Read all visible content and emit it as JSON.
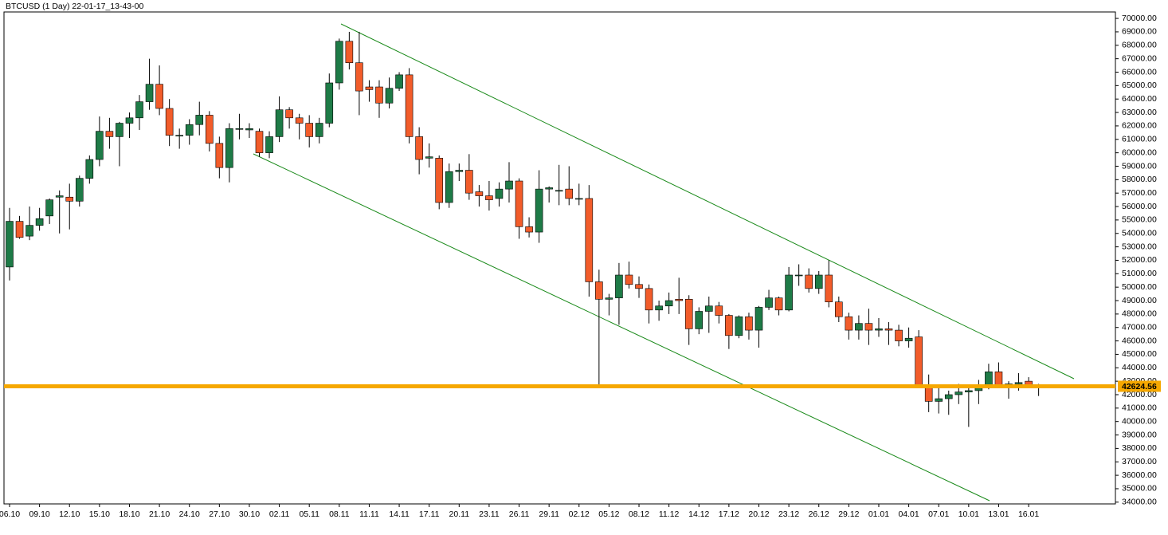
{
  "chart_data": {
    "type": "candlestick",
    "title": "BTCUSD (1 Day) 22-01-17_13-43-00",
    "categories": [
      "06.10",
      null,
      null,
      "09.10",
      null,
      null,
      "12.10",
      null,
      null,
      "15.10",
      null,
      null,
      "18.10",
      null,
      null,
      "21.10",
      null,
      null,
      "24.10",
      null,
      null,
      "27.10",
      null,
      null,
      "30.10",
      null,
      null,
      "02.11",
      null,
      null,
      "05.11",
      null,
      null,
      "08.11",
      null,
      null,
      "11.11",
      null,
      null,
      "14.11",
      null,
      null,
      "17.11",
      null,
      null,
      "20.11",
      null,
      null,
      "23.11",
      null,
      null,
      "26.11",
      null,
      null,
      "29.11",
      null,
      null,
      "02.12",
      null,
      null,
      "05.12",
      null,
      null,
      "08.12",
      null,
      null,
      "11.12",
      null,
      null,
      "14.12",
      null,
      null,
      "17.12",
      null,
      null,
      "20.12",
      null,
      null,
      "23.12",
      null,
      null,
      "26.12",
      null,
      null,
      "29.12",
      null,
      null,
      "01.01",
      null,
      null,
      "04.01",
      null,
      null,
      "07.01",
      null,
      null,
      "10.01",
      null,
      null,
      "13.01",
      null,
      null,
      "16.01",
      null
    ],
    "open": [
      51500,
      54900,
      53800,
      54600,
      55300,
      56700,
      56700,
      56400,
      58100,
      59500,
      61600,
      61200,
      62200,
      62600,
      63800,
      65100,
      63300,
      61300,
      61300,
      62100,
      62800,
      60700,
      58900,
      61800,
      61700,
      61600,
      60000,
      61200,
      63200,
      62600,
      62200,
      61200,
      62200,
      65200,
      68300,
      66700,
      64900,
      64900,
      63700,
      64800,
      65800,
      61200,
      59600,
      59600,
      56300,
      58600,
      58700,
      57100,
      56800,
      56600,
      57300,
      57900,
      54500,
      54100,
      57300,
      57200,
      57300,
      56600,
      56600,
      50400,
      49100,
      49200,
      50900,
      50200,
      49900,
      48300,
      48600,
      49100,
      49100,
      46900,
      48200,
      48600,
      47900,
      46400,
      47800,
      46800,
      48500,
      49200,
      48300,
      50900,
      50900,
      49900,
      50900,
      48900,
      47800,
      46800,
      47300,
      46800,
      46900,
      46800,
      46000,
      46300,
      42700,
      41500,
      41700,
      42000,
      42200,
      42300,
      42700,
      43700,
      42700,
      42800,
      43000,
      42600
    ],
    "high": [
      55900,
      55300,
      56000,
      55900,
      56600,
      57200,
      57700,
      58300,
      59800,
      62700,
      62600,
      62300,
      63000,
      64300,
      67000,
      66500,
      64000,
      61800,
      62500,
      63800,
      63100,
      61200,
      62200,
      62900,
      62200,
      61800,
      61600,
      64200,
      63400,
      62900,
      62800,
      62600,
      65900,
      68500,
      69000,
      69000,
      65400,
      65400,
      65600,
      66000,
      66300,
      61900,
      60700,
      59800,
      59200,
      59200,
      59900,
      57600,
      57900,
      57800,
      59300,
      58100,
      55200,
      58700,
      57500,
      59100,
      59000,
      57700,
      57600,
      51300,
      49500,
      51800,
      51900,
      50800,
      50200,
      49000,
      49600,
      50700,
      49400,
      48500,
      49300,
      48900,
      48000,
      47900,
      48100,
      48600,
      49800,
      49300,
      51500,
      51700,
      51400,
      51200,
      52000,
      49300,
      48100,
      47900,
      48400,
      47700,
      47400,
      47200,
      47000,
      46800,
      43500,
      42600,
      42300,
      42800,
      42700,
      43100,
      44300,
      44400,
      43000,
      43600,
      43300,
      42800
    ],
    "low": [
      50500,
      53600,
      53500,
      54200,
      54700,
      54000,
      54300,
      56000,
      57700,
      59000,
      60300,
      59000,
      61100,
      61700,
      63200,
      62800,
      60500,
      60300,
      60600,
      61300,
      60100,
      58100,
      57800,
      61000,
      61100,
      59700,
      59600,
      60800,
      61800,
      61000,
      60400,
      60700,
      61900,
      64700,
      66200,
      62800,
      63800,
      62600,
      63300,
      64600,
      60700,
      58400,
      58900,
      55800,
      55900,
      57900,
      56500,
      56000,
      55700,
      56000,
      56300,
      53600,
      53700,
      53300,
      56300,
      56100,
      56100,
      56100,
      49300,
      42600,
      47900,
      47200,
      49900,
      49200,
      47300,
      47500,
      48000,
      48000,
      45700,
      46500,
      46600,
      47300,
      45400,
      46200,
      46100,
      45500,
      48300,
      47900,
      48200,
      50100,
      49600,
      49500,
      48500,
      47400,
      46100,
      46100,
      45700,
      46300,
      45700,
      45600,
      45500,
      42500,
      40700,
      40600,
      40500,
      41300,
      39600,
      41300,
      42400,
      42600,
      41700,
      42300,
      42500,
      41900
    ],
    "close": [
      54900,
      53700,
      54600,
      55100,
      56500,
      56800,
      56400,
      58100,
      59500,
      61600,
      61200,
      62200,
      62600,
      63800,
      65100,
      63300,
      61300,
      61300,
      62100,
      62800,
      60700,
      58900,
      61800,
      61800,
      61800,
      60000,
      61200,
      63200,
      62600,
      62200,
      61200,
      62200,
      65200,
      68300,
      66700,
      64600,
      64700,
      63700,
      64800,
      65800,
      61200,
      59500,
      59700,
      56300,
      58600,
      58700,
      57000,
      56800,
      56500,
      57300,
      57900,
      54500,
      54100,
      57300,
      57400,
      57200,
      56600,
      56600,
      50400,
      49100,
      49200,
      50900,
      50200,
      49900,
      48300,
      48600,
      49000,
      49000,
      46900,
      48200,
      48600,
      47900,
      46400,
      47800,
      46800,
      48500,
      49200,
      48300,
      50900,
      50900,
      49900,
      50900,
      48900,
      47800,
      46800,
      47300,
      46800,
      46900,
      46800,
      46000,
      46200,
      42700,
      41500,
      41700,
      42000,
      42200,
      42300,
      42700,
      43700,
      42700,
      42800,
      42900,
      42500,
      42624.56
    ],
    "up_color": "#1e7b47",
    "down_color": "#f25c2a",
    "current_price": 42624.56,
    "current_price_color": "#f6a800",
    "ylim": [
      33870,
      70480
    ],
    "yticks": [
      {
        "value": 34000,
        "label": "34000.00"
      },
      {
        "value": 35000,
        "label": "35000.00"
      },
      {
        "value": 36000,
        "label": "36000.00"
      },
      {
        "value": 37000,
        "label": "37000.00"
      },
      {
        "value": 38000,
        "label": "38000.00"
      },
      {
        "value": 39000,
        "label": "39000.00"
      },
      {
        "value": 40000,
        "label": "40000.00"
      },
      {
        "value": 41000,
        "label": "41000.00"
      },
      {
        "value": 42000,
        "label": "42000.00"
      },
      {
        "value": 43000,
        "label": "43000.00"
      },
      {
        "value": 44000,
        "label": "44000.00"
      },
      {
        "value": 45000,
        "label": "45000.00"
      },
      {
        "value": 46000,
        "label": "46000.00"
      },
      {
        "value": 47000,
        "label": "47000.00"
      },
      {
        "value": 48000,
        "label": "48000.00"
      },
      {
        "value": 49000,
        "label": "49000.00"
      },
      {
        "value": 50000,
        "label": "50000.00"
      },
      {
        "value": 51000,
        "label": "51000.00"
      },
      {
        "value": 52000,
        "label": "52000.00"
      },
      {
        "value": 53000,
        "label": "53000.00"
      },
      {
        "value": 54000,
        "label": "54000.00"
      },
      {
        "value": 55000,
        "label": "55000.00"
      },
      {
        "value": 56000,
        "label": "56000.00"
      },
      {
        "value": 57000,
        "label": "57000.00"
      },
      {
        "value": 58000,
        "label": "58000.00"
      },
      {
        "value": 59000,
        "label": "59000.00"
      },
      {
        "value": 60000,
        "label": "60000.00"
      },
      {
        "value": 61000,
        "label": "61000.00"
      },
      {
        "value": 62000,
        "label": "62000.00"
      },
      {
        "value": 63000,
        "label": "63000.00"
      },
      {
        "value": 64000,
        "label": "64000.00"
      },
      {
        "value": 65000,
        "label": "65000.00"
      },
      {
        "value": 66000,
        "label": "66000.00"
      },
      {
        "value": 67000,
        "label": "67000.00"
      },
      {
        "value": 68000,
        "label": "68000.00"
      },
      {
        "value": 69000,
        "label": "69000.00"
      },
      {
        "value": 70000,
        "label": "70000.00"
      }
    ]
  }
}
